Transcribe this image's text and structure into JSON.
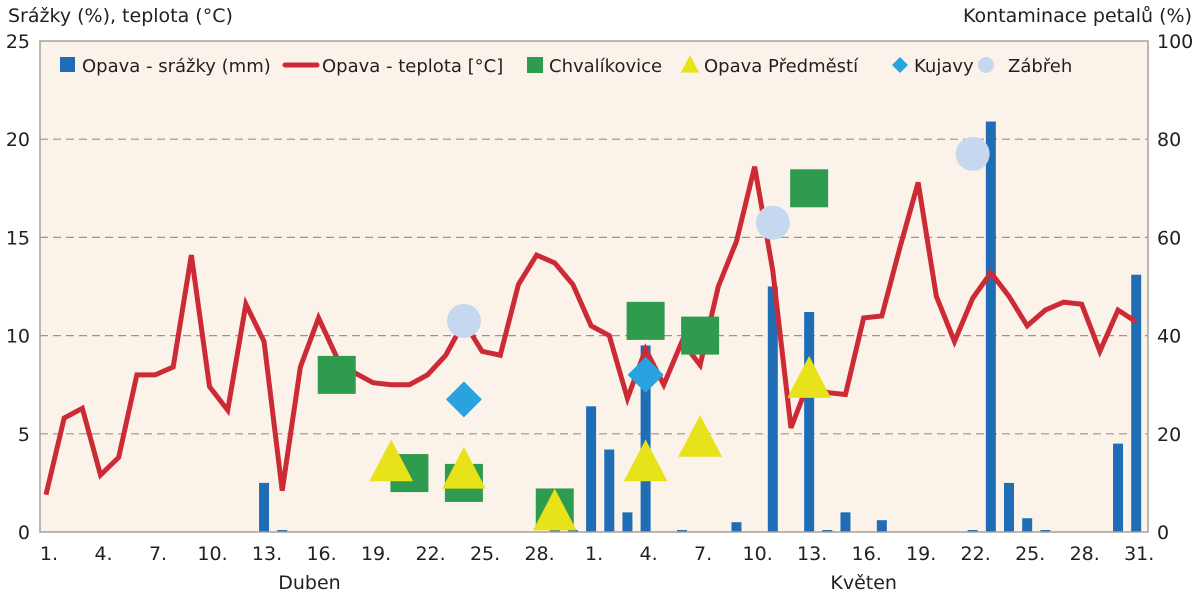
{
  "chart_data": {
    "type": "bar+line+scatter",
    "title": "",
    "ylabel_left": "Srážky (%), teplota (°C)",
    "ylabel_right": "Kontaminace petalů (%)",
    "ylim_left": [
      0,
      25
    ],
    "ylim_right": [
      0,
      100
    ],
    "yticks_left": [
      "0",
      "5",
      "10",
      "15",
      "20",
      "25"
    ],
    "yticks_right": [
      "0",
      "20",
      "40",
      "60",
      "80",
      "100"
    ],
    "grid": "horizontal-dashed",
    "legend_position": "top-inside",
    "months": [
      {
        "label": "Duben",
        "days": 30
      },
      {
        "label": "Květen",
        "days": 31
      }
    ],
    "xticks": [
      {
        "day_index": 1,
        "label": "1."
      },
      {
        "day_index": 4,
        "label": "4."
      },
      {
        "day_index": 7,
        "label": "7."
      },
      {
        "day_index": 10,
        "label": "10."
      },
      {
        "day_index": 13,
        "label": "13."
      },
      {
        "day_index": 16,
        "label": "16."
      },
      {
        "day_index": 19,
        "label": "19."
      },
      {
        "day_index": 22,
        "label": "22."
      },
      {
        "day_index": 25,
        "label": "25."
      },
      {
        "day_index": 28,
        "label": "28."
      },
      {
        "day_index": 31,
        "label": "1."
      },
      {
        "day_index": 34,
        "label": "4."
      },
      {
        "day_index": 37,
        "label": "7."
      },
      {
        "day_index": 40,
        "label": "10."
      },
      {
        "day_index": 43,
        "label": "13."
      },
      {
        "day_index": 46,
        "label": "16."
      },
      {
        "day_index": 49,
        "label": "19."
      },
      {
        "day_index": 52,
        "label": "22."
      },
      {
        "day_index": 55,
        "label": "25."
      },
      {
        "day_index": 58,
        "label": "28."
      },
      {
        "day_index": 61,
        "label": "31."
      }
    ],
    "series": [
      {
        "name": "Opava - srážky (mm)",
        "kind": "bar",
        "axis": "left",
        "color": "#1f6db5",
        "points": [
          {
            "day_index": 13,
            "value": 2.5
          },
          {
            "day_index": 14,
            "value": 0.1
          },
          {
            "day_index": 29,
            "value": 0.1
          },
          {
            "day_index": 30,
            "value": 0.1
          },
          {
            "day_index": 31,
            "value": 6.4
          },
          {
            "day_index": 32,
            "value": 4.2
          },
          {
            "day_index": 33,
            "value": 1.0
          },
          {
            "day_index": 34,
            "value": 9.5
          },
          {
            "day_index": 36,
            "value": 0.1
          },
          {
            "day_index": 39,
            "value": 0.5
          },
          {
            "day_index": 41,
            "value": 12.5
          },
          {
            "day_index": 43,
            "value": 11.2
          },
          {
            "day_index": 44,
            "value": 0.1
          },
          {
            "day_index": 45,
            "value": 1.0
          },
          {
            "day_index": 47,
            "value": 0.6
          },
          {
            "day_index": 52,
            "value": 0.1
          },
          {
            "day_index": 53,
            "value": 20.9
          },
          {
            "day_index": 54,
            "value": 2.5
          },
          {
            "day_index": 55,
            "value": 0.7
          },
          {
            "day_index": 56,
            "value": 0.1
          },
          {
            "day_index": 60,
            "value": 4.5
          },
          {
            "day_index": 61,
            "value": 13.1
          }
        ]
      },
      {
        "name": "Opava - teplota [°C]",
        "kind": "line",
        "axis": "left",
        "color": "#cc2b36",
        "values": [
          1.9,
          5.8,
          6.3,
          2.9,
          3.8,
          8.0,
          8.0,
          8.4,
          14.1,
          7.4,
          6.2,
          11.6,
          9.7,
          2.1,
          8.4,
          10.9,
          8.9,
          8.1,
          7.6,
          7.5,
          7.5,
          8.0,
          9.0,
          10.7,
          9.2,
          9.0,
          12.6,
          14.1,
          13.7,
          12.6,
          10.5,
          10.0,
          6.8,
          9.3,
          7.5,
          9.7,
          8.5,
          12.5,
          14.8,
          18.6,
          13.3,
          5.3,
          7.7,
          7.1,
          7.0,
          10.9,
          11.0,
          14.5,
          17.8,
          12.0,
          9.7,
          11.9,
          13.2,
          12.0,
          10.5,
          11.3,
          11.7,
          11.6,
          9.2,
          11.3,
          10.7
        ]
      },
      {
        "name": "Chvalíkovice",
        "kind": "scatter",
        "marker": "square",
        "axis": "right",
        "color": "#2e9b4e",
        "points": [
          {
            "day_index": 17,
            "value": 32
          },
          {
            "day_index": 21,
            "value": 12
          },
          {
            "day_index": 24,
            "value": 10
          },
          {
            "day_index": 29,
            "value": 5
          },
          {
            "day_index": 34,
            "value": 43
          },
          {
            "day_index": 37,
            "value": 40
          },
          {
            "day_index": 43,
            "value": 70
          }
        ]
      },
      {
        "name": "Opava Předměstí",
        "kind": "scatter",
        "marker": "triangle",
        "axis": "right",
        "color": "#e8e21a",
        "points": [
          {
            "day_index": 20,
            "value": 14
          },
          {
            "day_index": 24,
            "value": 12.5
          },
          {
            "day_index": 29,
            "value": 4
          },
          {
            "day_index": 34,
            "value": 14
          },
          {
            "day_index": 37,
            "value": 19
          },
          {
            "day_index": 43,
            "value": 31
          }
        ]
      },
      {
        "name": "Kujavy",
        "kind": "scatter",
        "marker": "diamond",
        "axis": "right",
        "color": "#29a3e0",
        "points": [
          {
            "day_index": 24,
            "value": 27
          },
          {
            "day_index": 34,
            "value": 32
          }
        ]
      },
      {
        "name": "Zábřeh",
        "kind": "scatter",
        "marker": "circle",
        "axis": "right",
        "color": "#c5d8ef",
        "points": [
          {
            "day_index": 24,
            "value": 43
          },
          {
            "day_index": 41,
            "value": 63
          },
          {
            "day_index": 52,
            "value": 77
          }
        ]
      }
    ]
  },
  "colors": {
    "plot_background": "#fbf3ea",
    "frame": "#a7a09b",
    "grid": "#9b958f",
    "text": "#231f20"
  }
}
